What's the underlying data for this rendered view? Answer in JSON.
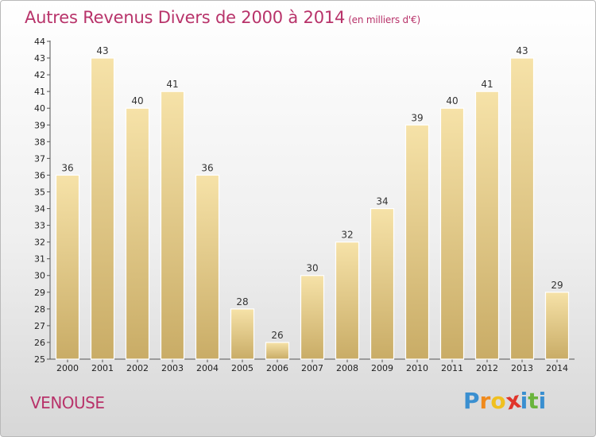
{
  "header": {
    "title": "Autres Revenus Divers de 2000 à 2014",
    "subtitle": "(en milliers d'€)"
  },
  "footer": {
    "commune": "VENOUSE",
    "logo_letters": [
      "P",
      "r",
      "o",
      "x",
      "i",
      "t",
      "i"
    ],
    "logo_colors": [
      "#3a8fd0",
      "#f08a1c",
      "#f0c020",
      "#e0352b",
      "#3a8fd0",
      "#6ab43c",
      "#3a8fd0"
    ]
  },
  "colors": {
    "title": "#b8336a",
    "bar_light": "#f6e2a8",
    "bar_dark": "#c9ac66"
  },
  "chart_data": {
    "type": "bar",
    "categories": [
      "2000",
      "2001",
      "2002",
      "2003",
      "2004",
      "2005",
      "2006",
      "2007",
      "2008",
      "2009",
      "2010",
      "2011",
      "2012",
      "2013",
      "2014"
    ],
    "values": [
      36,
      43,
      40,
      41,
      36,
      28,
      26,
      30,
      32,
      34,
      39,
      40,
      41,
      43,
      29
    ],
    "title": "Autres Revenus Divers de 2000 à 2014",
    "ylim": [
      25,
      44
    ],
    "yticks": [
      25,
      26,
      27,
      28,
      29,
      30,
      31,
      32,
      33,
      34,
      35,
      36,
      37,
      38,
      39,
      40,
      41,
      42,
      43,
      44
    ],
    "grid": false,
    "data_labels": true
  }
}
